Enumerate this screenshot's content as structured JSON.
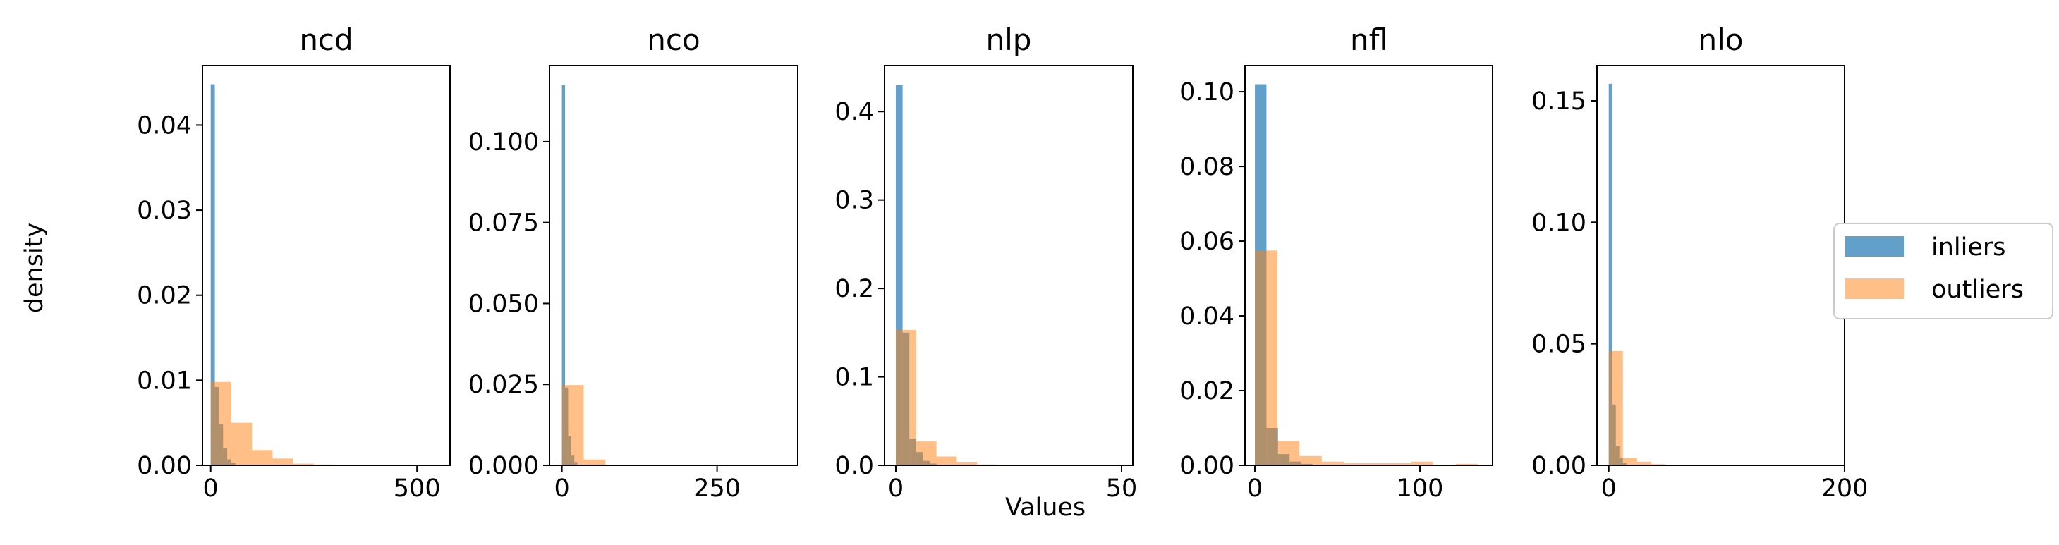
{
  "figure": {
    "ylabel": "density",
    "xlabel": "Values"
  },
  "legend": {
    "placement": "right",
    "entries": [
      {
        "label": "inliers",
        "color": "#1f77b4"
      },
      {
        "label": "outliers",
        "color": "#ff7f0e"
      }
    ]
  },
  "chart_data": [
    {
      "type": "histogram",
      "title": "ncd",
      "xlim": [
        -20,
        580
      ],
      "ylim": [
        0,
        0.047
      ],
      "xticks": [
        {
          "value": 0,
          "label": "0"
        },
        {
          "value": 500,
          "label": "500"
        }
      ],
      "yticks": [
        {
          "value": 0,
          "label": "0.00"
        },
        {
          "value": 0.01,
          "label": "0.01"
        },
        {
          "value": 0.02,
          "label": "0.02"
        },
        {
          "value": 0.03,
          "label": "0.03"
        },
        {
          "value": 0.04,
          "label": "0.04"
        }
      ],
      "series": [
        {
          "name": "inliers",
          "color": "#1f77b4",
          "bins": [
            [
              0,
              10,
              0.0448
            ],
            [
              10,
              20,
              0.0092
            ],
            [
              20,
              30,
              0.0048
            ],
            [
              30,
              40,
              0.002
            ],
            [
              40,
              50,
              0.0007
            ],
            [
              50,
              60,
              0.0003
            ]
          ]
        },
        {
          "name": "outliers",
          "color": "#ff7f0e",
          "bins": [
            [
              0,
              50,
              0.0098
            ],
            [
              50,
              100,
              0.005
            ],
            [
              100,
              150,
              0.0018
            ],
            [
              150,
              200,
              0.0008
            ],
            [
              200,
              250,
              0.0002
            ],
            [
              250,
              300,
              0.0001
            ]
          ]
        }
      ]
    },
    {
      "type": "histogram",
      "title": "nco",
      "xlim": [
        -20,
        380
      ],
      "ylim": [
        0,
        0.1235
      ],
      "xticks": [
        {
          "value": 0,
          "label": "0"
        },
        {
          "value": 250,
          "label": "250"
        }
      ],
      "yticks": [
        {
          "value": 0,
          "label": "0.000"
        },
        {
          "value": 0.025,
          "label": "0.025"
        },
        {
          "value": 0.05,
          "label": "0.050"
        },
        {
          "value": 0.075,
          "label": "0.075"
        },
        {
          "value": 0.1,
          "label": "0.100"
        }
      ],
      "series": [
        {
          "name": "inliers",
          "color": "#1f77b4",
          "bins": [
            [
              0,
              5,
              0.1175
            ],
            [
              5,
              10,
              0.024
            ],
            [
              10,
              15,
              0.009
            ],
            [
              15,
              20,
              0.003
            ],
            [
              20,
              25,
              0.001
            ]
          ]
        },
        {
          "name": "outliers",
          "color": "#ff7f0e",
          "bins": [
            [
              0,
              35,
              0.0248
            ],
            [
              35,
              70,
              0.0018
            ],
            [
              70,
              105,
              0.0002
            ]
          ]
        }
      ]
    },
    {
      "type": "histogram",
      "title": "nlp",
      "xlim": [
        -2.5,
        52.5
      ],
      "ylim": [
        0,
        0.452
      ],
      "xticks": [
        {
          "value": 0,
          "label": "0"
        },
        {
          "value": 50,
          "label": "50"
        }
      ],
      "yticks": [
        {
          "value": 0,
          "label": "0.0"
        },
        {
          "value": 0.1,
          "label": "0.1"
        },
        {
          "value": 0.2,
          "label": "0.2"
        },
        {
          "value": 0.3,
          "label": "0.3"
        },
        {
          "value": 0.4,
          "label": "0.4"
        }
      ],
      "series": [
        {
          "name": "inliers",
          "color": "#1f77b4",
          "bins": [
            [
              0,
              1.5,
              0.43
            ],
            [
              1.5,
              3,
              0.15
            ],
            [
              3,
              4.5,
              0.03
            ],
            [
              4.5,
              6,
              0.015
            ],
            [
              6,
              7.5,
              0.005
            ],
            [
              7.5,
              9,
              0.002
            ]
          ]
        },
        {
          "name": "outliers",
          "color": "#ff7f0e",
          "bins": [
            [
              0,
              4.5,
              0.153
            ],
            [
              4.5,
              9,
              0.027
            ],
            [
              9,
              13.5,
              0.01
            ],
            [
              13.5,
              18,
              0.004
            ],
            [
              18,
              22.5,
              0.001
            ],
            [
              22.5,
              27,
              0.0003
            ]
          ]
        }
      ]
    },
    {
      "type": "histogram",
      "title": "nfl",
      "xlim": [
        -6,
        144
      ],
      "ylim": [
        0,
        0.107
      ],
      "xticks": [
        {
          "value": 0,
          "label": "0"
        },
        {
          "value": 100,
          "label": "100"
        }
      ],
      "yticks": [
        {
          "value": 0,
          "label": "0.00"
        },
        {
          "value": 0.02,
          "label": "0.02"
        },
        {
          "value": 0.04,
          "label": "0.04"
        },
        {
          "value": 0.06,
          "label": "0.06"
        },
        {
          "value": 0.08,
          "label": "0.08"
        },
        {
          "value": 0.1,
          "label": "0.10"
        }
      ],
      "series": [
        {
          "name": "inliers",
          "color": "#1f77b4",
          "bins": [
            [
              0,
              7,
              0.102
            ],
            [
              7,
              14,
              0.01
            ],
            [
              14,
              21,
              0.003
            ],
            [
              21,
              28,
              0.001
            ],
            [
              28,
              35,
              0.0004
            ]
          ]
        },
        {
          "name": "outliers",
          "color": "#ff7f0e",
          "bins": [
            [
              0,
              13.5,
              0.0575
            ],
            [
              13.5,
              27,
              0.0065
            ],
            [
              27,
              40.5,
              0.0025
            ],
            [
              40.5,
              54,
              0.001
            ],
            [
              54,
              67.5,
              0.0006
            ],
            [
              67.5,
              81,
              0.0006
            ],
            [
              81,
              94.5,
              0.0006
            ],
            [
              94.5,
              108,
              0.001
            ],
            [
              108,
              121.5,
              0.0002
            ],
            [
              121.5,
              135,
              0.0004
            ]
          ]
        }
      ]
    },
    {
      "type": "histogram",
      "title": "nlo",
      "xlim": [
        -10,
        200
      ],
      "ylim": [
        0,
        0.1645
      ],
      "xticks": [
        {
          "value": 0,
          "label": "0"
        },
        {
          "value": 200,
          "label": "200"
        }
      ],
      "yticks": [
        {
          "value": 0,
          "label": "0.00"
        },
        {
          "value": 0.05,
          "label": "0.05"
        },
        {
          "value": 0.1,
          "label": "0.10"
        },
        {
          "value": 0.15,
          "label": "0.15"
        }
      ],
      "series": [
        {
          "name": "inliers",
          "color": "#1f77b4",
          "bins": [
            [
              0,
              3,
              0.157
            ],
            [
              3,
              6,
              0.025
            ],
            [
              6,
              9,
              0.008
            ],
            [
              9,
              12,
              0.003
            ],
            [
              12,
              15,
              0.001
            ]
          ]
        },
        {
          "name": "outliers",
          "color": "#ff7f0e",
          "bins": [
            [
              0,
              12,
              0.047
            ],
            [
              12,
              24,
              0.003
            ],
            [
              24,
              36,
              0.0015
            ],
            [
              36,
              48,
              0.0005
            ]
          ]
        }
      ]
    }
  ]
}
